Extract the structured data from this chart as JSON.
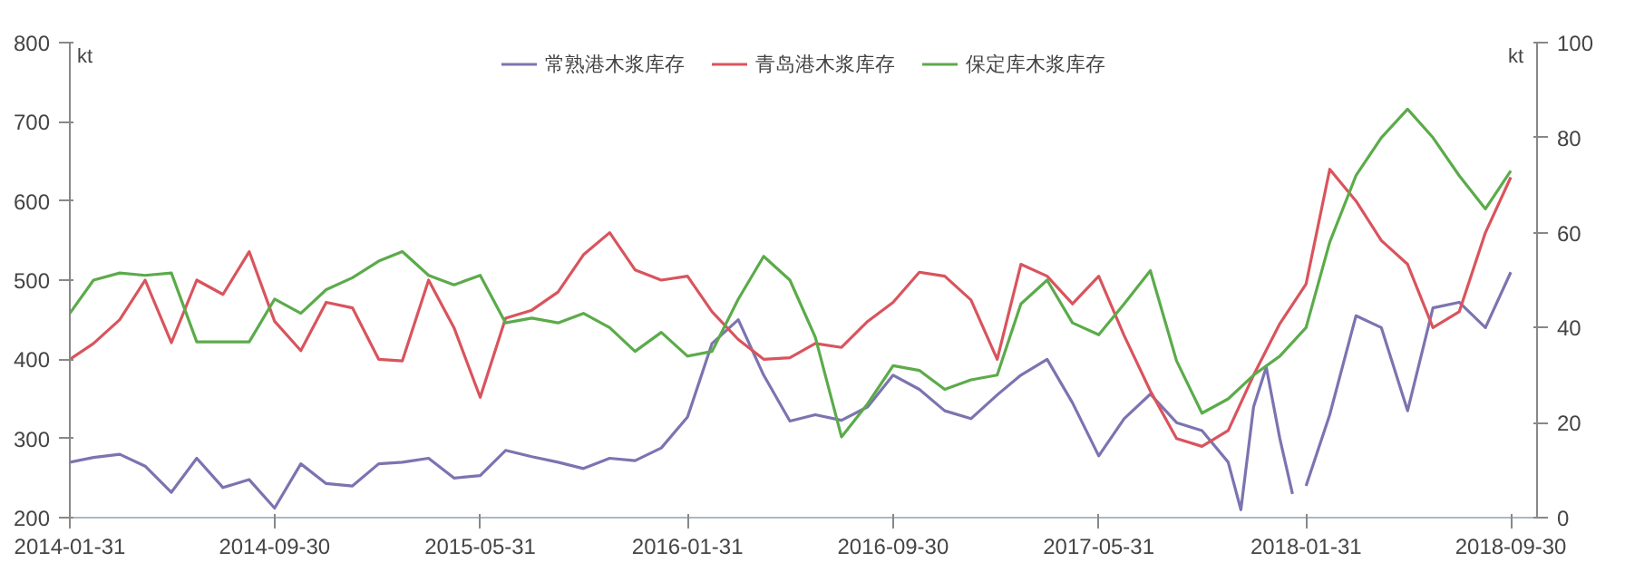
{
  "chart_data": {
    "type": "line",
    "x": [
      "2014-01-31",
      "2014-02-28",
      "2014-03-31",
      "2014-04-30",
      "2014-05-31",
      "2014-06-30",
      "2014-07-31",
      "2014-08-31",
      "2014-09-30",
      "2014-10-31",
      "2014-11-30",
      "2014-12-31",
      "2015-01-31",
      "2015-02-28",
      "2015-03-31",
      "2015-04-30",
      "2015-05-31",
      "2015-06-30",
      "2015-07-31",
      "2015-08-31",
      "2015-09-30",
      "2015-10-31",
      "2015-11-30",
      "2015-12-31",
      "2016-01-31",
      "2016-02-29",
      "2016-03-31",
      "2016-04-30",
      "2016-05-31",
      "2016-06-30",
      "2016-07-31",
      "2016-08-31",
      "2016-09-30",
      "2016-10-31",
      "2016-11-30",
      "2016-12-31",
      "2017-01-31",
      "2017-02-28",
      "2017-03-31",
      "2017-04-30",
      "2017-05-31",
      "2017-06-30",
      "2017-07-31",
      "2017-08-31",
      "2017-09-30",
      "2017-10-31",
      "2017-11-30",
      "2017-12-31",
      "2018-01-31",
      "2018-02-28",
      "2018-03-31",
      "2018-04-30",
      "2018-05-31",
      "2018-06-30",
      "2018-07-31",
      "2018-08-31",
      "2018-09-30"
    ],
    "series": [
      {
        "name": "常熟港木浆库存",
        "color": "#7b74b0",
        "x": [
          "2014-01-31",
          "2014-02-28",
          "2014-03-31",
          "2014-04-30",
          "2014-05-31",
          "2014-06-30",
          "2014-07-31",
          "2014-08-31",
          "2014-09-30",
          "2014-10-31",
          "2014-11-30",
          "2014-12-31",
          "2015-01-31",
          "2015-02-28",
          "2015-03-31",
          "2015-04-30",
          "2015-05-31",
          "2015-06-30",
          "2015-07-31",
          "2015-08-31",
          "2015-09-30",
          "2015-10-31",
          "2015-11-30",
          "2015-12-31",
          "2016-01-31",
          "2016-02-29",
          "2016-03-31",
          "2016-04-30",
          "2016-05-31",
          "2016-06-30",
          "2016-07-31",
          "2016-08-31",
          "2016-09-30",
          "2016-10-31",
          "2016-11-30",
          "2016-12-31",
          "2017-01-31",
          "2017-02-28",
          "2017-03-31",
          "2017-04-30",
          "2017-05-31",
          "2017-06-30",
          "2017-07-31",
          "2017-08-31",
          "2017-09-30",
          "2017-10-31",
          "2017-11-15",
          "2017-11-30",
          "2017-12-15",
          "2017-12-31",
          "2018-01-15",
          "2018-01-22",
          "2018-01-31",
          "2018-02-28",
          "2018-03-31",
          "2018-04-30",
          "2018-05-31",
          "2018-06-30",
          "2018-07-31",
          "2018-08-31",
          "2018-09-30"
        ],
        "values": [
          270,
          276,
          280,
          265,
          232,
          275,
          238,
          248,
          212,
          268,
          243,
          240,
          268,
          270,
          275,
          250,
          253,
          285,
          277,
          270,
          262,
          275,
          272,
          288,
          327,
          420,
          450,
          380,
          322,
          330,
          323,
          340,
          380,
          362,
          335,
          325,
          355,
          380,
          400,
          345,
          278,
          325,
          356,
          320,
          310,
          270,
          210,
          340,
          390,
          300,
          230,
          null,
          240,
          330,
          455,
          440,
          335,
          465,
          472,
          440,
          510
        ]
      },
      {
        "name": "青岛港木浆库存",
        "color": "#d9545d",
        "values": [
          400,
          420,
          450,
          500,
          421,
          500,
          482,
          536,
          448,
          411,
          472,
          465,
          400,
          398,
          500,
          440,
          352,
          452,
          462,
          485,
          532,
          560,
          513,
          500,
          505,
          460,
          425,
          400,
          402,
          420,
          415,
          448,
          472,
          510,
          505,
          475,
          400,
          520,
          505,
          470,
          505,
          430,
          360,
          300,
          290,
          310,
          380,
          445,
          495,
          640,
          600,
          550,
          520,
          440,
          460,
          560,
          630
        ]
      },
      {
        "name": "保定库木浆库存",
        "color": "#5bab4a",
        "axis": "y2",
        "values": [
          43,
          50,
          51.5,
          51,
          51.5,
          37,
          37,
          37,
          46,
          43,
          48,
          50.5,
          54,
          56,
          51,
          49,
          51,
          41,
          42,
          41,
          43,
          40,
          35,
          39,
          34,
          35,
          46,
          55,
          50,
          38,
          17,
          24,
          32,
          31,
          27,
          29,
          30,
          45,
          50,
          41,
          38.5,
          45,
          52,
          33,
          22,
          25,
          30,
          34,
          40,
          58,
          72,
          80,
          86,
          80,
          72,
          65,
          73
        ]
      }
    ],
    "xlim": [
      "2014-01-31",
      "2018-10-31"
    ],
    "xticks": [
      "2014-01-31",
      "2014-09-30",
      "2015-05-31",
      "2016-01-31",
      "2016-09-30",
      "2017-05-31",
      "2018-01-31",
      "2018-09-30"
    ],
    "ylim": [
      200,
      800
    ],
    "yticks": [
      200,
      300,
      400,
      500,
      600,
      700,
      800
    ],
    "y2lim": [
      0,
      100
    ],
    "y2ticks": [
      0,
      20,
      40,
      60,
      80,
      100
    ],
    "ylabel": "kt",
    "y2label": "kt",
    "legend": "top",
    "grid": false,
    "line_style": "solid"
  }
}
